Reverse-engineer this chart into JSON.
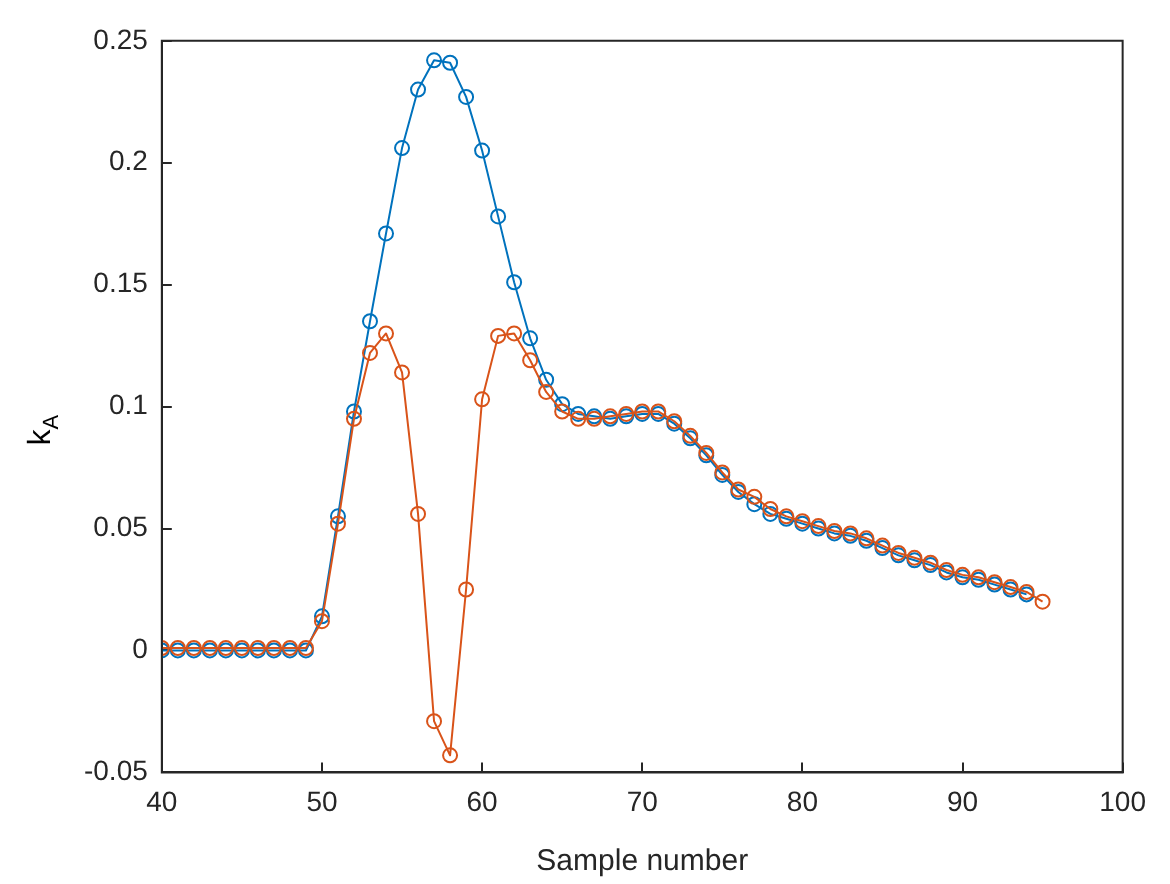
{
  "chart_data": {
    "type": "line",
    "xlabel": "Sample number",
    "ylabel": "k$_{A}$",
    "x": [
      40,
      41,
      42,
      43,
      44,
      45,
      46,
      47,
      48,
      49,
      50,
      51,
      52,
      53,
      54,
      55,
      56,
      57,
      58,
      59,
      60,
      61,
      62,
      63,
      64,
      65,
      66,
      67,
      68,
      69,
      70,
      71,
      72,
      73,
      74,
      75,
      76,
      77,
      78,
      79,
      80,
      81,
      82,
      83,
      84,
      85,
      86,
      87,
      88,
      89,
      90,
      91,
      92,
      93,
      94,
      95
    ],
    "series": [
      {
        "color": "#0072bd",
        "values": [
          0,
          0,
          0,
          0,
          0,
          0,
          0,
          0,
          0,
          0,
          0.014,
          0.055,
          0.098,
          0.135,
          0.171,
          0.206,
          0.23,
          0.242,
          0.241,
          0.227,
          0.205,
          0.178,
          0.151,
          0.128,
          0.111,
          0.101,
          0.097,
          0.096,
          0.095,
          0.096,
          0.097,
          0.097,
          0.093,
          0.087,
          0.08,
          0.072,
          0.065,
          0.06,
          0.056,
          0.054,
          0.052,
          0.05,
          0.048,
          0.047,
          0.045,
          0.042,
          0.039,
          0.037,
          0.035,
          0.032,
          0.03,
          0.029,
          0.027,
          0.025,
          0.023,
          null
        ]
      },
      {
        "color": "#d95319",
        "values": [
          0.001,
          0.001,
          0.001,
          0.001,
          0.001,
          0.001,
          0.001,
          0.001,
          0.001,
          0.001,
          0.012,
          0.052,
          0.095,
          0.122,
          0.13,
          0.114,
          0.056,
          -0.029,
          -0.043,
          0.025,
          0.103,
          0.129,
          0.13,
          0.119,
          0.106,
          0.098,
          0.095,
          0.095,
          0.096,
          0.097,
          0.098,
          0.098,
          0.094,
          0.088,
          0.081,
          0.073,
          0.066,
          0.063,
          0.058,
          0.055,
          0.053,
          0.051,
          0.049,
          0.048,
          0.046,
          0.043,
          0.04,
          0.038,
          0.036,
          0.033,
          0.031,
          0.03,
          0.028,
          0.026,
          0.024,
          0.02
        ]
      }
    ],
    "xlim": [
      40,
      100
    ],
    "xticks": [
      40,
      50,
      60,
      70,
      80,
      90,
      100
    ],
    "ylim": [
      -0.05,
      0.25
    ],
    "yticks": [
      -0.05,
      0,
      0.05,
      0.1,
      0.15,
      0.2,
      0.25
    ],
    "marker": "circle",
    "line_style": "solid",
    "grid": false,
    "legend": false
  }
}
